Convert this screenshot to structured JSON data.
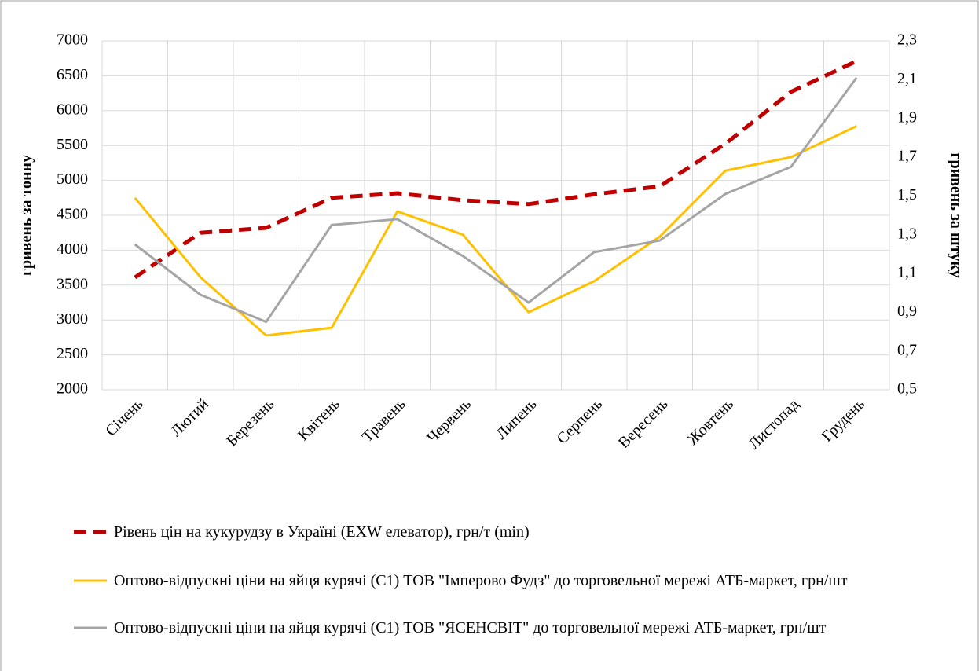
{
  "chart_data": {
    "type": "line",
    "categories": [
      "Січень",
      "Лютий",
      "Березень",
      "Квітень",
      "Травень",
      "Червень",
      "Липень",
      "Серпень",
      "Вересень",
      "Жовтень",
      "Листопад",
      "Грудень"
    ],
    "ylabel": "гривень за тонну",
    "y2label": "гривень за штуку",
    "ylim": [
      2000,
      7000
    ],
    "yticks": [
      2000,
      2500,
      3000,
      3500,
      4000,
      4500,
      5000,
      5500,
      6000,
      6500,
      7000
    ],
    "y2lim": [
      0.5,
      2.3
    ],
    "y2ticks": [
      {
        "value": 0.5,
        "label": "0,5"
      },
      {
        "value": 0.7,
        "label": "0,7"
      },
      {
        "value": 0.9,
        "label": "0,9"
      },
      {
        "value": 1.1,
        "label": "1,1"
      },
      {
        "value": 1.3,
        "label": "1,3"
      },
      {
        "value": 1.5,
        "label": "1,5"
      },
      {
        "value": 1.7,
        "label": "1,7"
      },
      {
        "value": 1.9,
        "label": "1,9"
      },
      {
        "value": 2.1,
        "label": "2,1"
      },
      {
        "value": 2.3,
        "label": "2,3"
      }
    ],
    "grid": true,
    "legend": "bottom",
    "series": [
      {
        "name": "Рівень цін на кукурудзу в Україні (EXW елеватор), грн/т (min)",
        "color": "#c00000",
        "dashed": true,
        "values": [
          3610,
          4250,
          4320,
          4750,
          4815,
          4715,
          4660,
          4800,
          4915,
          5525,
          6270,
          6710
        ]
      },
      {
        "name": "Оптово-відпускні ціни  на яйця курячі  (С1) ТОВ \"Імперово Фудз\" до торговельної  мережі АТБ-маркет, грн/шт",
        "color": "#ffc000",
        "axis": "y2",
        "values": [
          1.49,
          1.08,
          0.78,
          0.82,
          1.42,
          1.3,
          0.9,
          1.06,
          1.29,
          1.63,
          1.7,
          1.86
        ]
      },
      {
        "name": "Оптово-відпускні ціни  на яйця курячі  (С1) ТОВ \"ЯСЕНСВІТ\" до торговельної  мережі АТБ-маркет, грн/шт",
        "color": "#a5a5a5",
        "axis": "y2",
        "values": [
          1.25,
          0.99,
          0.85,
          1.35,
          1.38,
          1.19,
          0.95,
          1.21,
          1.27,
          1.51,
          1.65,
          2.11
        ]
      }
    ]
  }
}
